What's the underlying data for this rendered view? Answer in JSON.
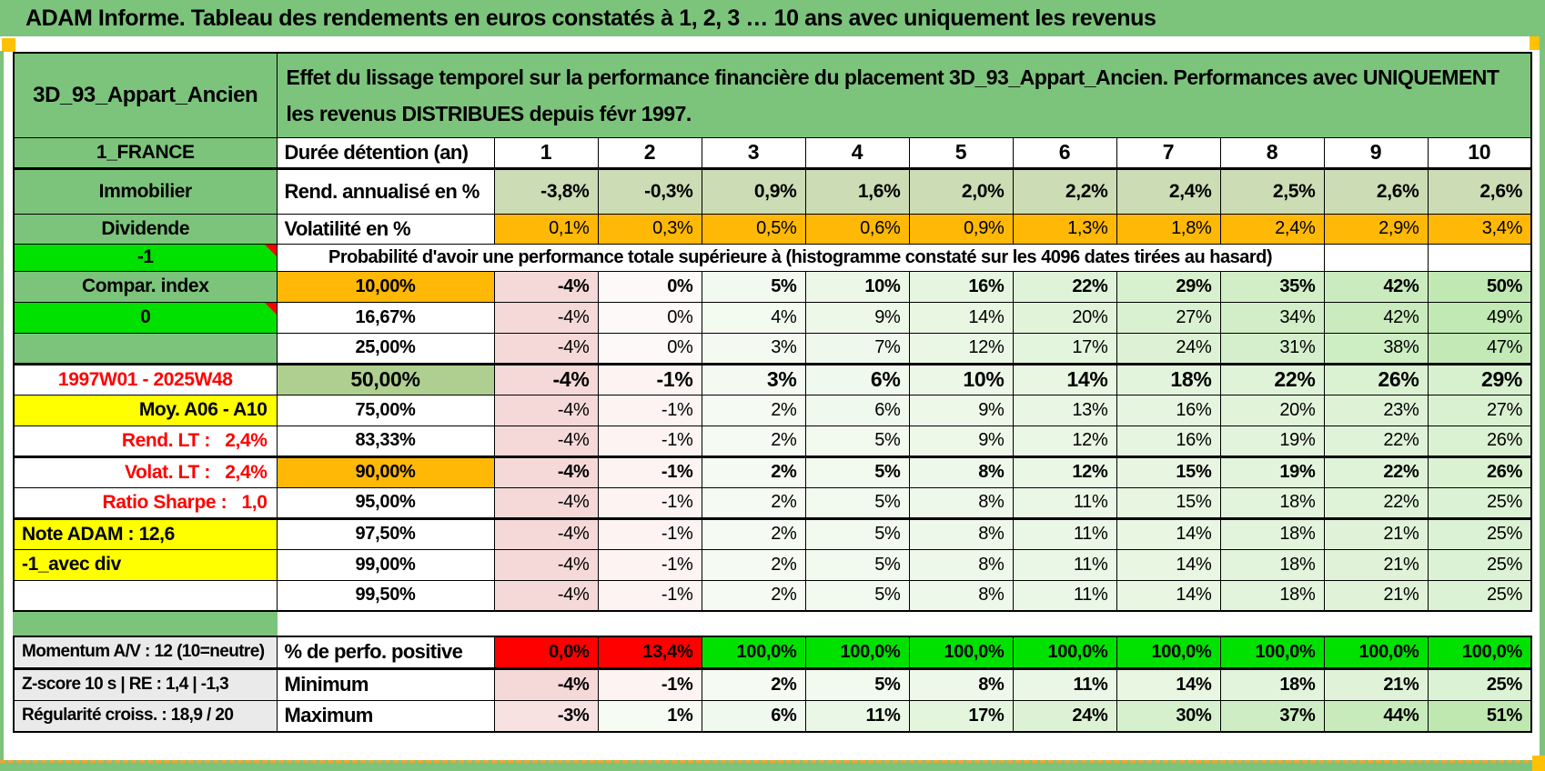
{
  "title": "ADAM Informe. Tableau des rendements en euros constatés à 1, 2, 3 … 10 ans avec uniquement les revenus",
  "header": {
    "asset": "3D_93_Appart_Ancien",
    "description": "Effet du lissage temporel sur la performance financière du placement 3D_93_Appart_Ancien. Performances avec UNIQUEMENT les revenus DISTRIBUES depuis févr 1997."
  },
  "columns": [
    "1",
    "2",
    "3",
    "4",
    "5",
    "6",
    "7",
    "8",
    "9",
    "10"
  ],
  "colors": {
    "page_green": "#7cc47c",
    "lime_green": "#00e100",
    "sage": "#ccdcb5",
    "sage_dark": "#aecf90",
    "orange": "#ffb805",
    "yellow": "#ffff00",
    "gray": "#eaeaea",
    "alert_red": "#ff0000",
    "pink_low": "#f5d9d8",
    "pink_high": "#fffcfc",
    "green_low": "#f7fbf5",
    "green_high": "#bfe8b1"
  },
  "main_rows": [
    {
      "a": "1_FRANCE",
      "a_style": "green",
      "b": "Durée détention (an)",
      "b_style": "label",
      "cell": "header",
      "row_class": "r-det"
    },
    {
      "a": "Immobilier",
      "a_style": "green",
      "b": "Rend. annualisé en %",
      "b_style": "label",
      "cell": "sage",
      "bold": true,
      "row_class": "r-rend",
      "values": [
        "-3,8%",
        "-0,3%",
        "0,9%",
        "1,6%",
        "2,0%",
        "2,2%",
        "2,4%",
        "2,5%",
        "2,6%",
        "2,6%"
      ]
    },
    {
      "a": "Dividende",
      "a_style": "green",
      "b": "Volatilité en %",
      "b_style": "label",
      "cell": "orange",
      "row_class": "r-volat",
      "values": [
        "0,1%",
        "0,3%",
        "0,5%",
        "0,6%",
        "0,9%",
        "1,3%",
        "1,8%",
        "2,4%",
        "2,9%",
        "3,4%"
      ]
    },
    {
      "a": "-1",
      "a_style": "lime",
      "a_marker": true,
      "row_class": "r-prob",
      "note": "Probabilité d'avoir une performance totale supérieure à (histogramme constaté sur les 4096 dates tirées au hasard)"
    },
    {
      "a": "Compar. index",
      "a_style": "green",
      "b": "10,00%",
      "b_style": "orange",
      "cell": "gradient",
      "bold": true,
      "row_class": "r-pct",
      "values": [
        "-4%",
        "0%",
        "5%",
        "10%",
        "16%",
        "22%",
        "29%",
        "35%",
        "42%",
        "50%"
      ]
    },
    {
      "a": "0",
      "a_style": "lime",
      "a_marker": true,
      "b": "16,67%",
      "cell": "gradient",
      "row_class": "r-pct",
      "values": [
        "-4%",
        "0%",
        "4%",
        "9%",
        "14%",
        "20%",
        "27%",
        "34%",
        "42%",
        "49%"
      ]
    },
    {
      "a": "",
      "a_style": "green",
      "b": "25,00%",
      "cell": "gradient",
      "row_class": "r-pct",
      "values": [
        "-4%",
        "0%",
        "3%",
        "7%",
        "12%",
        "17%",
        "24%",
        "31%",
        "38%",
        "47%"
      ]
    },
    {
      "a": "1997W01 - 2025W48",
      "a_style": "red-center",
      "b": "50,00%",
      "b_style": "sage-dark",
      "cell": "gradient",
      "bold": true,
      "big": true,
      "thick_top": true,
      "row_class": "r-pct",
      "values": [
        "-4%",
        "-1%",
        "3%",
        "6%",
        "10%",
        "14%",
        "18%",
        "22%",
        "26%",
        "29%"
      ]
    },
    {
      "a": "Moy. A06 - A10",
      "a_style": "yellow-right",
      "b": "75,00%",
      "cell": "gradient",
      "row_class": "r-pct",
      "values": [
        "-4%",
        "-1%",
        "2%",
        "6%",
        "9%",
        "13%",
        "16%",
        "20%",
        "23%",
        "27%"
      ]
    },
    {
      "a": "Rend. LT :   2,4%",
      "a_style": "red-right",
      "b": "83,33%",
      "cell": "gradient",
      "row_class": "r-pct",
      "values": [
        "-4%",
        "-1%",
        "2%",
        "5%",
        "9%",
        "12%",
        "16%",
        "19%",
        "22%",
        "26%"
      ]
    },
    {
      "a": "Volat. LT :   2,4%",
      "a_style": "red-right",
      "b": "90,00%",
      "b_style": "orange",
      "cell": "gradient",
      "bold": true,
      "thick_top": true,
      "row_class": "r-pct",
      "values": [
        "-4%",
        "-1%",
        "2%",
        "5%",
        "8%",
        "12%",
        "15%",
        "19%",
        "22%",
        "26%"
      ]
    },
    {
      "a": "Ratio Sharpe :   1,0",
      "a_style": "red-right",
      "b": "95,00%",
      "cell": "gradient",
      "thick_bottom": true,
      "row_class": "r-pct",
      "values": [
        "-4%",
        "-1%",
        "2%",
        "5%",
        "8%",
        "11%",
        "15%",
        "18%",
        "22%",
        "25%"
      ]
    },
    {
      "a": "Note ADAM : 12,6",
      "a_style": "yellow-left",
      "b": "97,50%",
      "cell": "gradient",
      "row_class": "r-pct",
      "values": [
        "-4%",
        "-1%",
        "2%",
        "5%",
        "8%",
        "11%",
        "14%",
        "18%",
        "21%",
        "25%"
      ]
    },
    {
      "a": "-1_avec div",
      "a_style": "yellow-left",
      "b": "99,00%",
      "cell": "gradient",
      "row_class": "r-pct",
      "values": [
        "-4%",
        "-1%",
        "2%",
        "5%",
        "8%",
        "11%",
        "14%",
        "18%",
        "21%",
        "25%"
      ]
    },
    {
      "a": "",
      "a_style": "white",
      "b": "99,50%",
      "cell": "gradient",
      "row_class": "r-pct",
      "values": [
        "-4%",
        "-1%",
        "2%",
        "5%",
        "8%",
        "11%",
        "14%",
        "18%",
        "21%",
        "25%"
      ]
    }
  ],
  "bottom_rows": [
    {
      "a": "Momentum A/V : 12 (10=neutre)",
      "a_style": "gray",
      "b": "% de perfo. positive",
      "b_style": "label",
      "cell": "perfo",
      "bold": true,
      "thick_bottom": true,
      "row_class": "r-bot",
      "values": [
        "0,0%",
        "13,4%",
        "100,0%",
        "100,0%",
        "100,0%",
        "100,0%",
        "100,0%",
        "100,0%",
        "100,0%",
        "100,0%"
      ]
    },
    {
      "a": "Z-score 10 s | RE : 1,4 | -1,3",
      "a_style": "gray",
      "b": "Minimum",
      "b_style": "label",
      "cell": "gradient",
      "bold": true,
      "row_class": "r-bot",
      "values": [
        "-4%",
        "-1%",
        "2%",
        "5%",
        "8%",
        "11%",
        "14%",
        "18%",
        "21%",
        "25%"
      ]
    },
    {
      "a": "Régularité croiss. : 18,9 / 20",
      "a_style": "gray",
      "b": "Maximum",
      "b_style": "label",
      "cell": "gradient",
      "bold": true,
      "row_class": "r-bot",
      "values": [
        "-3%",
        "1%",
        "6%",
        "11%",
        "17%",
        "24%",
        "30%",
        "37%",
        "44%",
        "51%"
      ]
    }
  ]
}
